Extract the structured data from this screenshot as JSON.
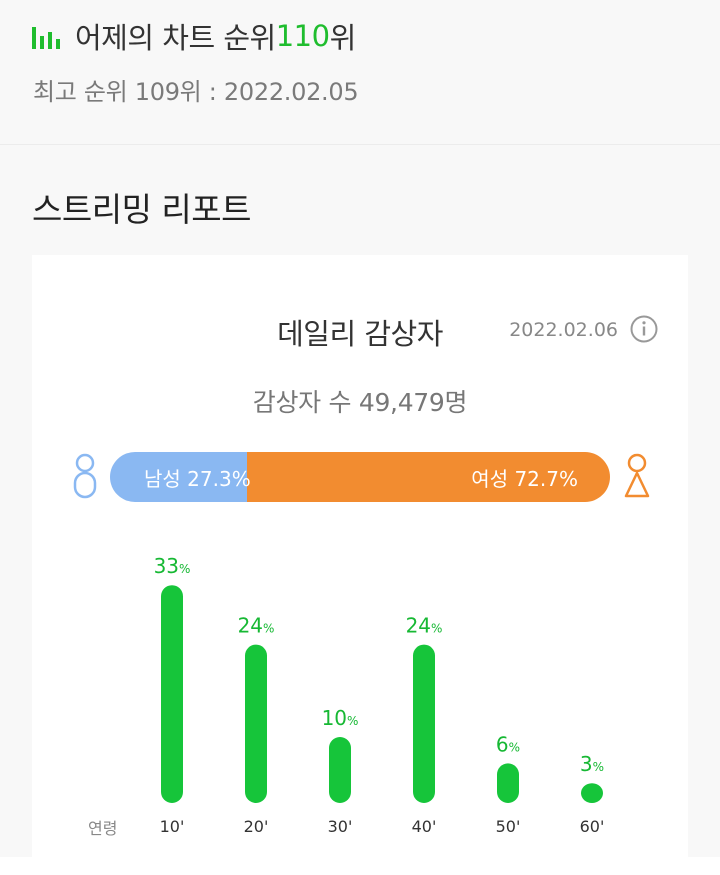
{
  "header": {
    "rank_prefix": "어제의 차트 순위 ",
    "rank_value": "110",
    "rank_suffix": "위",
    "best_rank": "최고 순위 109위 : 2022.02.05",
    "accent_color": "#1fbd2e"
  },
  "section": {
    "title": "스트리밍 리포트"
  },
  "card": {
    "title": "데일리 감상자",
    "date": "2022.02.06",
    "listeners": "감상자 수 49,479명"
  },
  "gender": {
    "male_label": "남성 27.3%",
    "female_label": "여성 72.7%",
    "male_fraction": 0.273,
    "male_color": "#8ab8f2",
    "female_color": "#f28c30"
  },
  "chart_data": {
    "type": "bar",
    "categories": [
      "10'",
      "20'",
      "30'",
      "40'",
      "50'",
      "60'"
    ],
    "values": [
      33,
      24,
      10,
      24,
      6,
      3
    ],
    "value_labels": [
      "33",
      "24",
      "10",
      "24",
      "6",
      "3"
    ],
    "unit": "%",
    "xlabel": "연령",
    "ylabel": "",
    "bar_color": "#16c53a",
    "label_color": "#16b833"
  }
}
